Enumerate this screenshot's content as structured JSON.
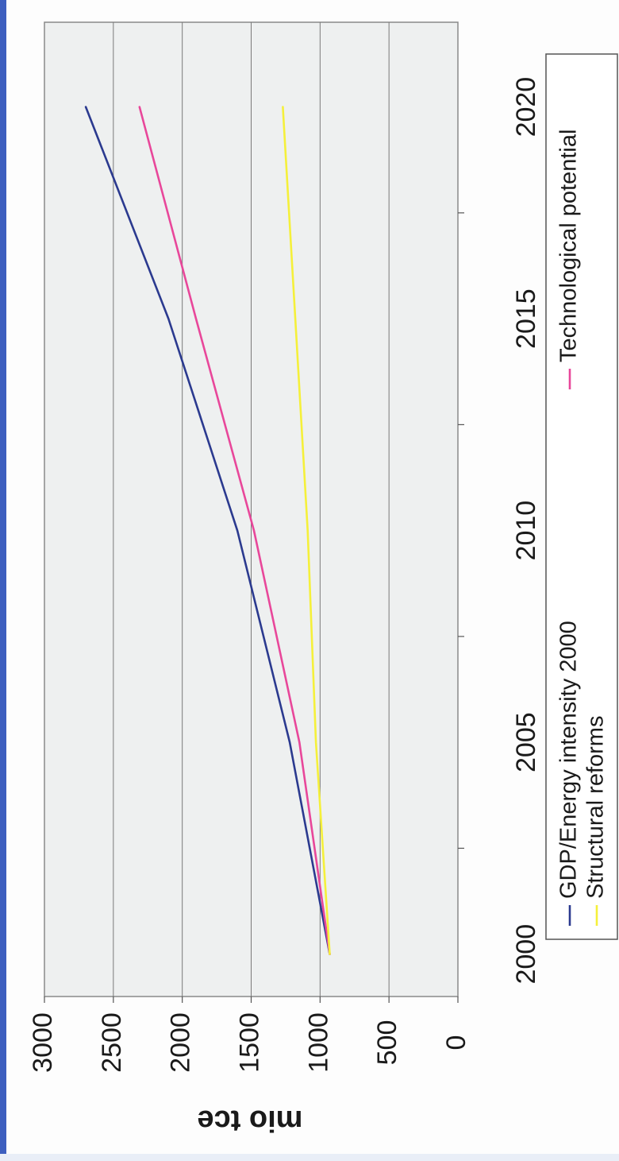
{
  "chart_data": {
    "type": "line",
    "title": "",
    "xlabel": "",
    "ylabel": "mio tce",
    "x": [
      2000,
      2005,
      2010,
      2015,
      2020
    ],
    "x_ticks": [
      "2000",
      "2005",
      "2010",
      "2015",
      "2020"
    ],
    "y_ticks": [
      "0",
      "500",
      "1000",
      "1500",
      "2000",
      "2500",
      "3000"
    ],
    "xlim": [
      1999,
      2022
    ],
    "ylim": [
      0,
      3000
    ],
    "grid": true,
    "legend_position": "bottom",
    "orientation_note": "page rotated 90 degrees counter-clockwise",
    "series": [
      {
        "name": "GDP/Energy intensity 2000",
        "color": "#2b3a8f",
        "x": [
          2000,
          2005,
          2010,
          2015,
          2020
        ],
        "values": [
          930,
          1220,
          1600,
          2100,
          2700
        ]
      },
      {
        "name": "Technological potential",
        "color": "#e8479a",
        "x": [
          2000,
          2005,
          2010,
          2015,
          2020
        ],
        "values": [
          930,
          1150,
          1480,
          1900,
          2310
        ]
      },
      {
        "name": "Structural reforms",
        "color": "#f5f03a",
        "x": [
          2000,
          2005,
          2010,
          2015,
          2020
        ],
        "values": [
          930,
          1030,
          1090,
          1180,
          1270
        ]
      }
    ]
  }
}
